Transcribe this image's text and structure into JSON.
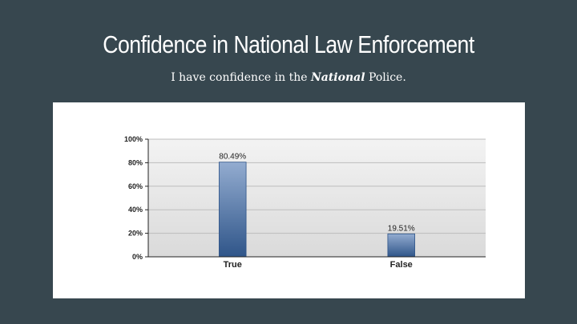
{
  "slide": {
    "title": "Confidence in National Law Enforcement",
    "subtitle_before": "I have confidence in the ",
    "subtitle_emphasis": "National",
    "subtitle_after": " Police."
  },
  "colors": {
    "background": "#37474f",
    "bar_top": "#93acd0",
    "bar_bottom": "#2f5589",
    "plot_top": "#f3f3f3",
    "plot_bottom": "#dadada"
  },
  "chart_data": {
    "type": "bar",
    "categories": [
      "True",
      "False"
    ],
    "values": [
      80.49,
      19.51
    ],
    "data_labels": [
      "80.49%",
      "19.51%"
    ],
    "y_ticks": [
      "0%",
      "20%",
      "40%",
      "60%",
      "80%",
      "100%"
    ],
    "ylim": [
      0,
      100
    ],
    "grid": true,
    "legend": false,
    "title": "",
    "xlabel": "",
    "ylabel": ""
  }
}
